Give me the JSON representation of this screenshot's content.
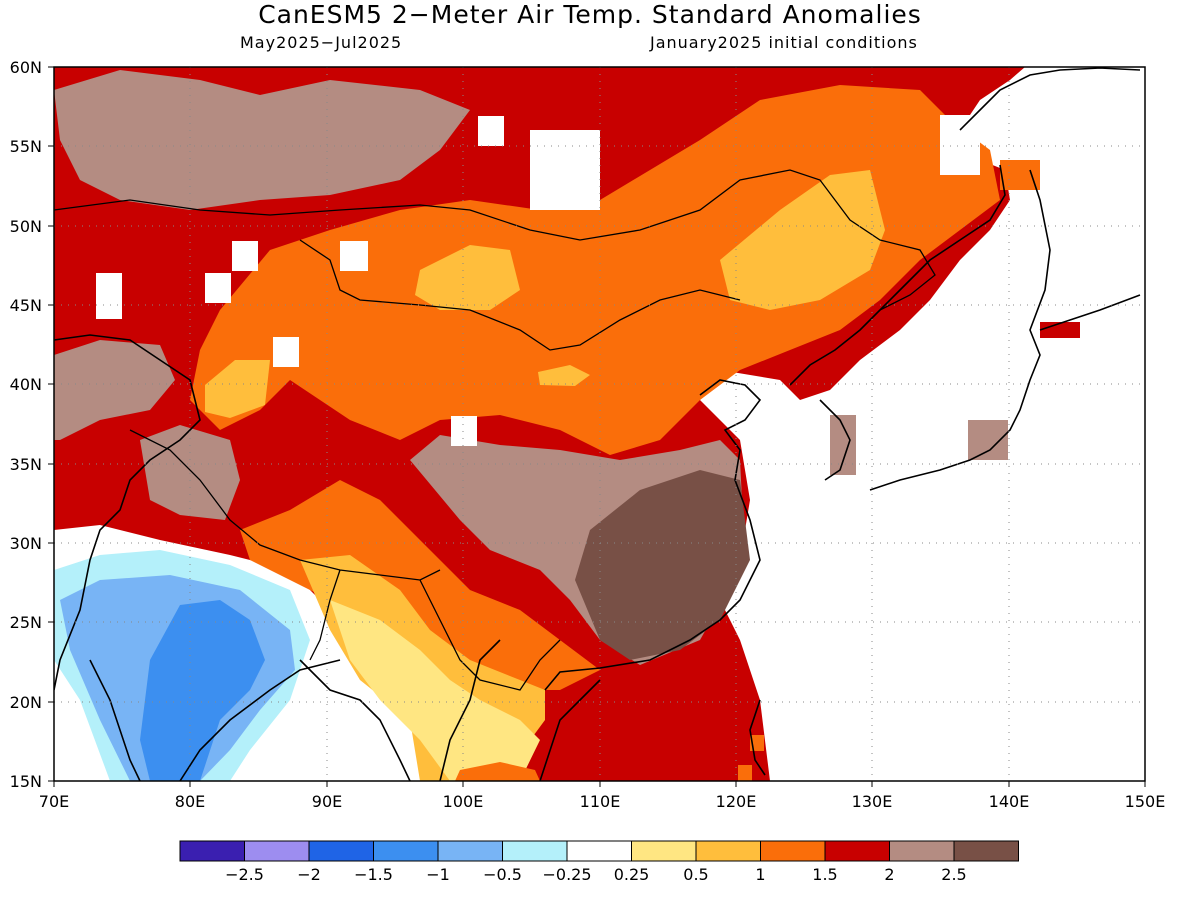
{
  "title": "CanESM5 2−Meter Air Temp. Standard Anomalies",
  "period": "May2025−Jul2025",
  "init": "January2025 initial conditions",
  "lat_labels": [
    "60N",
    "55N",
    "50N",
    "45N",
    "40N",
    "35N",
    "30N",
    "25N",
    "20N",
    "15N"
  ],
  "lon_labels": [
    "70E",
    "80E",
    "90E",
    "100E",
    "110E",
    "120E",
    "130E",
    "140E",
    "150E"
  ],
  "extent": {
    "lon": [
      70,
      150
    ],
    "lat": [
      15,
      60
    ]
  },
  "grid": true,
  "legend": {
    "colors": [
      "#3a1fb0",
      "#9d8df0",
      "#1f64e6",
      "#3c8ff0",
      "#78b4f5",
      "#b4f0fa",
      "#ffffff",
      "#ffe682",
      "#ffbe3c",
      "#fa6e0a",
      "#c80000",
      "#b48c82",
      "#785046"
    ],
    "labels": [
      "−2.5",
      "−2",
      "−1.5",
      "−1",
      "−0.5",
      "−0.25",
      "0.25",
      "0.5",
      "1",
      "1.5",
      "2",
      "2.5"
    ]
  }
}
